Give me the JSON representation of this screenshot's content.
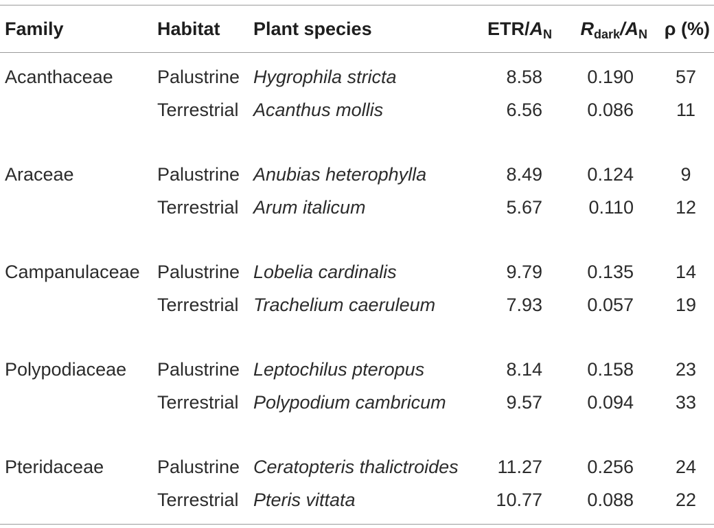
{
  "table": {
    "headers": {
      "family": "Family",
      "habitat": "Habitat",
      "species": "Plant species",
      "etr_prefix": "ETR/",
      "etr_a": "A",
      "etr_sub": "N",
      "rdark_r": "R",
      "rdark_sub": "dark",
      "rdark_slash_a": "/A",
      "rdark_sub2": "N",
      "rho": "ρ (%)"
    },
    "rows": [
      {
        "family": "Acanthaceae",
        "habitat": "Palustrine",
        "species": "Hygrophila stricta",
        "etr": "8.58",
        "rdark": "0.190",
        "rho": "57"
      },
      {
        "family": "",
        "habitat": "Terrestrial",
        "species": "Acanthus mollis",
        "etr": "6.56",
        "rdark": "0.086",
        "rho": "11"
      },
      {
        "family": "Araceae",
        "habitat": "Palustrine",
        "species": "Anubias heterophylla",
        "etr": "8.49",
        "rdark": "0.124",
        "rho": "9"
      },
      {
        "family": "",
        "habitat": "Terrestrial",
        "species": "Arum italicum",
        "etr": "5.67",
        "rdark": "0.110",
        "rho": "12"
      },
      {
        "family": "Campanulaceae",
        "habitat": "Palustrine",
        "species": "Lobelia cardinalis",
        "etr": "9.79",
        "rdark": "0.135",
        "rho": "14"
      },
      {
        "family": "",
        "habitat": "Terrestrial",
        "species": "Trachelium caeruleum",
        "etr": "7.93",
        "rdark": "0.057",
        "rho": "19"
      },
      {
        "family": "Polypodiaceae",
        "habitat": "Palustrine",
        "species": "Leptochilus pteropus",
        "etr": "8.14",
        "rdark": "0.158",
        "rho": "23"
      },
      {
        "family": "",
        "habitat": "Terrestrial",
        "species": "Polypodium cambricum",
        "etr": "9.57",
        "rdark": "0.094",
        "rho": "33"
      },
      {
        "family": "Pteridaceae",
        "habitat": "Palustrine",
        "species": "Ceratopteris thalictroides",
        "etr": "11.27",
        "rdark": "0.256",
        "rho": "24"
      },
      {
        "family": "",
        "habitat": "Terrestrial",
        "species": "Pteris vittata",
        "etr": "10.77",
        "rdark": "0.088",
        "rho": "22"
      }
    ]
  }
}
